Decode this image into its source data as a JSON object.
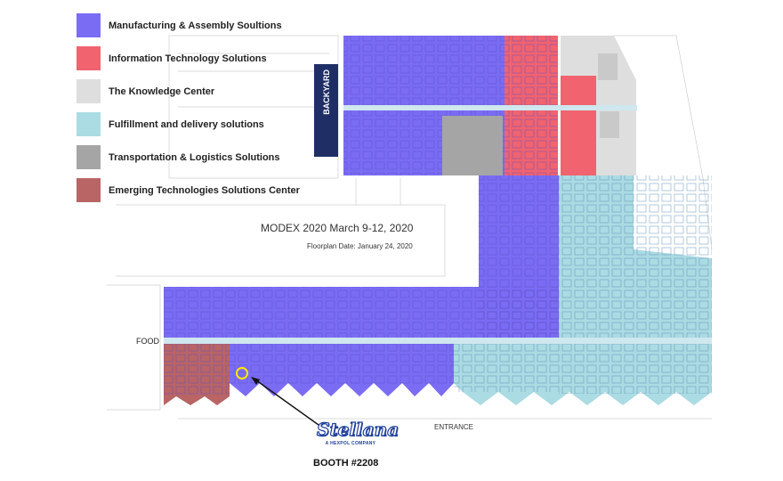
{
  "legend": {
    "items": [
      {
        "label": "Manufacturing & Assembly Soultions",
        "color": "#7b6cf4"
      },
      {
        "label": "Information Technology Solutions",
        "color": "#f0636f"
      },
      {
        "label": "The Knowledge Center",
        "color": "#dedede"
      },
      {
        "label": "Fulfillment and delivery solutions",
        "color": "#abdbe3"
      },
      {
        "label": "Transportation & Logistics Solutions",
        "color": "#a5a5a5"
      },
      {
        "label": "Emerging Technologies Solutions Center",
        "color": "#b96465"
      }
    ]
  },
  "map": {
    "title": "MODEX 2020 March 9-12, 2020",
    "subtitle": "Floorplan Date: January 24, 2020",
    "food_label": "FOOD",
    "entrance_label": "ENTRANCE",
    "backyard_label": "BACKYARD",
    "marker_color": "#ffe600"
  },
  "exhibitor": {
    "logo_text": "Stellana",
    "logo_subtext": "A HEXPOL COMPANY",
    "booth_label": "BOOTH #2208"
  }
}
